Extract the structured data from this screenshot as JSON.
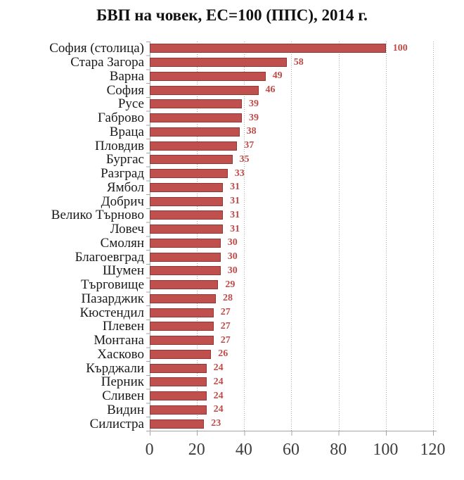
{
  "title": "БВП на човек, ЕС=100 (ППС), 2014 г.",
  "colors": {
    "bar_fill": "#c0504d",
    "bar_border": "#903634",
    "value_label": "#be4b48",
    "gridline": "#a6a6a6",
    "axis_line": "#a6a6a6",
    "title_text": "#121212",
    "category_text": "#1a1a1a",
    "tick_text": "#3d3d3d",
    "background": "#ffffff"
  },
  "chart_data": {
    "type": "bar",
    "orientation": "horizontal",
    "title": "БВП на човек, ЕС=100 (ППС), 2014 г.",
    "categories": [
      "София (столица)",
      "Стара Загора",
      "Варна",
      "София",
      "Русе",
      "Габрово",
      "Враца",
      "Пловдив",
      "Бургас",
      "Разград",
      "Ямбол",
      "Добрич",
      "Велико Търново",
      "Ловеч",
      "Смолян",
      "Благоевград",
      "Шумен",
      "Търговище",
      "Пазарджик",
      "Кюстендил",
      "Плевен",
      "Монтана",
      "Хасково",
      "Кърджали",
      "Перник",
      "Сливен",
      "Видин",
      "Силистра"
    ],
    "values": [
      100,
      58,
      49,
      46,
      39,
      39,
      38,
      37,
      35,
      33,
      31,
      31,
      31,
      31,
      30,
      30,
      30,
      29,
      28,
      27,
      27,
      27,
      26,
      24,
      24,
      24,
      24,
      23
    ],
    "xlabel": "",
    "ylabel": "",
    "xlim": [
      0,
      120
    ],
    "x_ticks": [
      0,
      20,
      40,
      60,
      80,
      100,
      120
    ],
    "grid": "vertical dotted gridlines every 20 units",
    "legend": "none",
    "data_labels": "outside end, red"
  }
}
